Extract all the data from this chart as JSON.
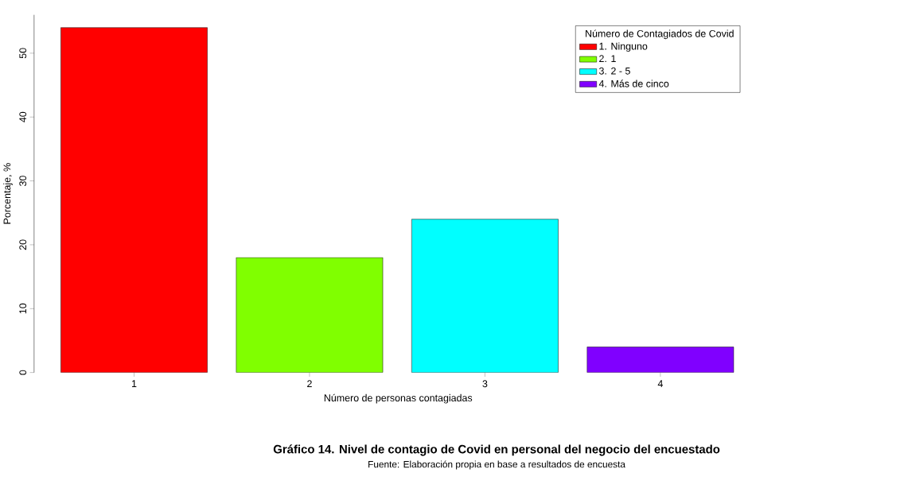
{
  "chart_data": {
    "type": "bar",
    "title": "Gráfico 14. Nivel de contagio de Covid en personal del negocio del encuestado",
    "xlabel": "Número de personas contagiadas",
    "ylabel": "Porcentaje, %",
    "legend_title": "Número de Contagiados de Covid",
    "annotations": [
      "Fuente: Elaboración propia en base a resultados de encuesta"
    ],
    "categories": [
      "1",
      "2",
      "3",
      "4"
    ],
    "series": [
      {
        "name": "1. Ninguno",
        "color": "#ff0000",
        "values": [
          54,
          null,
          null,
          null
        ]
      },
      {
        "name": "2. 1",
        "color": "#80ff00",
        "values": [
          null,
          18,
          null,
          null
        ]
      },
      {
        "name": "3. 2 - 5",
        "color": "#00ffff",
        "values": [
          null,
          null,
          24,
          null
        ]
      },
      {
        "name": "4. Más de cinco",
        "color": "#8000ff",
        "values": [
          null,
          null,
          null,
          4
        ]
      }
    ],
    "ylim": [
      0,
      56
    ],
    "yticks": [
      0,
      10,
      20,
      30,
      40,
      50
    ],
    "legend": "top right",
    "grid": false
  }
}
